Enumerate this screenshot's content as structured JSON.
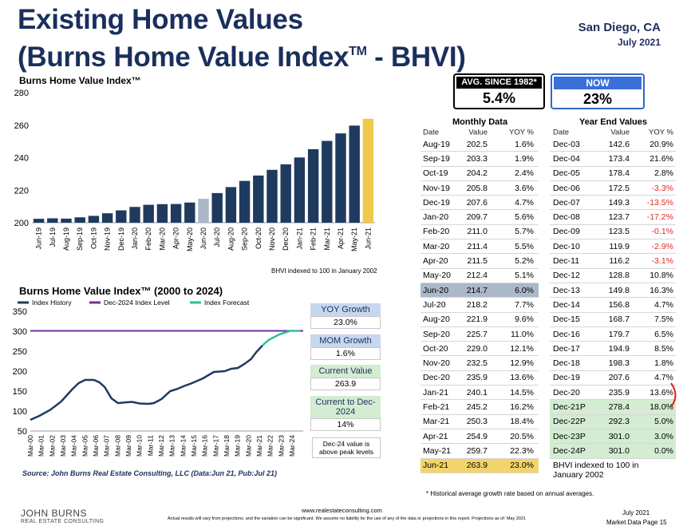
{
  "header": {
    "title_line_1": "Existing Home Values",
    "title_line_2_main": "(Burns Home Value Index",
    "title_line_2_tm": "TM",
    "title_line_2_end": " - BHVI)",
    "location": "San Diego, CA",
    "date": "July 2021"
  },
  "summary": {
    "avg_label": "AVG. SINCE 1982*",
    "avg_value": "5.4%",
    "now_label": "NOW",
    "now_value": "23%"
  },
  "chart_data": [
    {
      "type": "bar",
      "title": "Burns Home Value Index™",
      "categories": [
        "Jun-19",
        "Jul-19",
        "Aug-19",
        "Sep-19",
        "Oct-19",
        "Nov-19",
        "Dec-19",
        "Jan-20",
        "Feb-20",
        "Mar-20",
        "Apr-20",
        "May-20",
        "Jun-20",
        "Jul-20",
        "Aug-20",
        "Sep-20",
        "Oct-20",
        "Nov-20",
        "Dec-20",
        "Jan-21",
        "Feb-21",
        "Mar-21",
        "Apr-21",
        "May-21",
        "Jun-21"
      ],
      "values": [
        202.4,
        202.7,
        202.5,
        203.3,
        204.2,
        205.8,
        207.6,
        209.7,
        211.0,
        211.4,
        211.5,
        212.4,
        214.7,
        218.2,
        221.9,
        225.7,
        229.0,
        232.5,
        235.9,
        240.1,
        245.2,
        250.3,
        254.9,
        259.7,
        263.9
      ],
      "ylim": [
        200,
        280
      ],
      "yticks": [
        200,
        220,
        240,
        260,
        280
      ],
      "bar_color": "#1f3a5f",
      "highlight_colors": {
        "Jun-20": "#a9b7c6",
        "Jun-21": "#f0c94a"
      },
      "note": "BHVI indexed to 100 in January 2002"
    },
    {
      "type": "line",
      "title": "Burns Home Value Index™ (2000 to 2024)",
      "legend": [
        "Index History",
        "Dec-2024 Index Level",
        "Index Forecast"
      ],
      "legend_placement": "top",
      "colors": {
        "history": "#1f3a5f",
        "level": "#7030a0",
        "forecast": "#2ebf9a"
      },
      "ylim": [
        50,
        350
      ],
      "yticks": [
        50,
        100,
        150,
        200,
        250,
        300,
        350
      ],
      "xticks": [
        "Mar-00",
        "Mar-01",
        "Mar-02",
        "Mar-03",
        "Mar-04",
        "Mar-05",
        "Mar-06",
        "Mar-07",
        "Mar-08",
        "Mar-09",
        "Mar-10",
        "Mar-11",
        "Mar-12",
        "Mar-13",
        "Mar-14",
        "Mar-15",
        "Mar-16",
        "Mar-17",
        "Mar-18",
        "Mar-19",
        "Mar-20",
        "Mar-21",
        "Mar-22",
        "Mar-23",
        "Mar-24"
      ],
      "history_x": [
        2000.17,
        2001.0,
        2002.0,
        2003.0,
        2004.0,
        2004.6,
        2005.2,
        2006.0,
        2006.5,
        2007.0,
        2007.6,
        2008.2,
        2009.0,
        2009.5,
        2010.2,
        2011.0,
        2011.5,
        2012.2,
        2013.0,
        2013.6,
        2014.2,
        2015.0,
        2016.0,
        2017.0,
        2018.0,
        2018.6,
        2019.2,
        2019.8,
        2020.4,
        2020.9,
        2021.45
      ],
      "history_y": [
        78,
        88,
        103,
        124,
        154,
        170,
        178,
        178,
        172,
        160,
        132,
        120,
        122,
        123,
        119,
        118,
        120,
        130,
        150,
        155,
        162,
        170,
        182,
        198,
        200,
        206,
        208,
        218,
        230,
        248,
        264
      ],
      "forecast_x": [
        2021.45,
        2022.0,
        2023.0,
        2024.0,
        2024.9
      ],
      "forecast_y": [
        264,
        278,
        292,
        301,
        301
      ],
      "level_value": 301
    }
  ],
  "side_boxes": {
    "yoy_label": "YOY Growth",
    "yoy_value": "23.0%",
    "mom_label": "MOM Growth",
    "mom_value": "1.6%",
    "current_label": "Current Value",
    "current_value": "263.9",
    "current_dec_label": "Current to Dec-2024",
    "current_dec_value": "14%",
    "dec24_note": "Dec-24 value is above peak levels"
  },
  "monthly": {
    "title": "Monthly Data",
    "headers": [
      "Date",
      "Value",
      "YOY %"
    ],
    "rows": [
      [
        "Aug-19",
        "202.5",
        "1.6%"
      ],
      [
        "Sep-19",
        "203.3",
        "1.9%"
      ],
      [
        "Oct-19",
        "204.2",
        "2.4%"
      ],
      [
        "Nov-19",
        "205.8",
        "3.6%"
      ],
      [
        "Dec-19",
        "207.6",
        "4.7%"
      ],
      [
        "Jan-20",
        "209.7",
        "5.6%"
      ],
      [
        "Feb-20",
        "211.0",
        "5.7%"
      ],
      [
        "Mar-20",
        "211.4",
        "5.5%"
      ],
      [
        "Apr-20",
        "211.5",
        "5.2%"
      ],
      [
        "May-20",
        "212.4",
        "5.1%"
      ],
      [
        "Jun-20",
        "214.7",
        "6.0%"
      ],
      [
        "Jul-20",
        "218.2",
        "7.7%"
      ],
      [
        "Aug-20",
        "221.9",
        "9.6%"
      ],
      [
        "Sep-20",
        "225.7",
        "11.0%"
      ],
      [
        "Oct-20",
        "229.0",
        "12.1%"
      ],
      [
        "Nov-20",
        "232.5",
        "12.9%"
      ],
      [
        "Dec-20",
        "235.9",
        "13.6%"
      ],
      [
        "Jan-21",
        "240.1",
        "14.5%"
      ],
      [
        "Feb-21",
        "245.2",
        "16.2%"
      ],
      [
        "Mar-21",
        "250.3",
        "18.4%"
      ],
      [
        "Apr-21",
        "254.9",
        "20.5%"
      ],
      [
        "May-21",
        "259.7",
        "22.3%"
      ],
      [
        "Jun-21",
        "263.9",
        "23.0%"
      ]
    ]
  },
  "yearend": {
    "title": "Year End Values",
    "headers": [
      "Date",
      "Value",
      "YOY %"
    ],
    "rows": [
      [
        "Dec-03",
        "142.6",
        "20.9%"
      ],
      [
        "Dec-04",
        "173.4",
        "21.6%"
      ],
      [
        "Dec-05",
        "178.4",
        "2.8%"
      ],
      [
        "Dec-06",
        "172.5",
        "-3.3%"
      ],
      [
        "Dec-07",
        "149.3",
        "-13.5%"
      ],
      [
        "Dec-08",
        "123.7",
        "-17.2%"
      ],
      [
        "Dec-09",
        "123.5",
        "-0.1%"
      ],
      [
        "Dec-10",
        "119.9",
        "-2.9%"
      ],
      [
        "Dec-11",
        "116.2",
        "-3.1%"
      ],
      [
        "Dec-12",
        "128.8",
        "10.8%"
      ],
      [
        "Dec-13",
        "149.8",
        "16.3%"
      ],
      [
        "Dec-14",
        "156.8",
        "4.7%"
      ],
      [
        "Dec-15",
        "168.7",
        "7.5%"
      ],
      [
        "Dec-16",
        "179.7",
        "6.5%"
      ],
      [
        "Dec-17",
        "194.9",
        "8.5%"
      ],
      [
        "Dec-18",
        "198.3",
        "1.8%"
      ],
      [
        "Dec-19",
        "207.6",
        "4.7%"
      ],
      [
        "Dec-20",
        "235.9",
        "13.6%"
      ],
      [
        "Dec-21P",
        "278.4",
        "18.0%"
      ],
      [
        "Dec-22P",
        "292.3",
        "5.0%"
      ],
      [
        "Dec-23P",
        "301.0",
        "3.0%"
      ],
      [
        "Dec-24P",
        "301.0",
        "0.0%"
      ]
    ],
    "note": "BHVI indexed to 100 in January 2002"
  },
  "notes": {
    "footnote": "* Historical average growth rate based on annual averages.",
    "source": "Source: John Burns Real Estate Consulting, LLC (Data:Jun 21, Pub:Jul 21)"
  },
  "footer": {
    "logo_line1": "JOHN BURNS",
    "logo_line2": "REAL ESTATE CONSULTING",
    "url": "www.realestateconsulting.com",
    "disclaimer": "Actual results will vary from projections, and the variation can be significant. We assume no liability for the use of any of the data or projections in this report. Projections as of: May 2021",
    "date": "July 2021",
    "page": "Market Data Page 15"
  }
}
